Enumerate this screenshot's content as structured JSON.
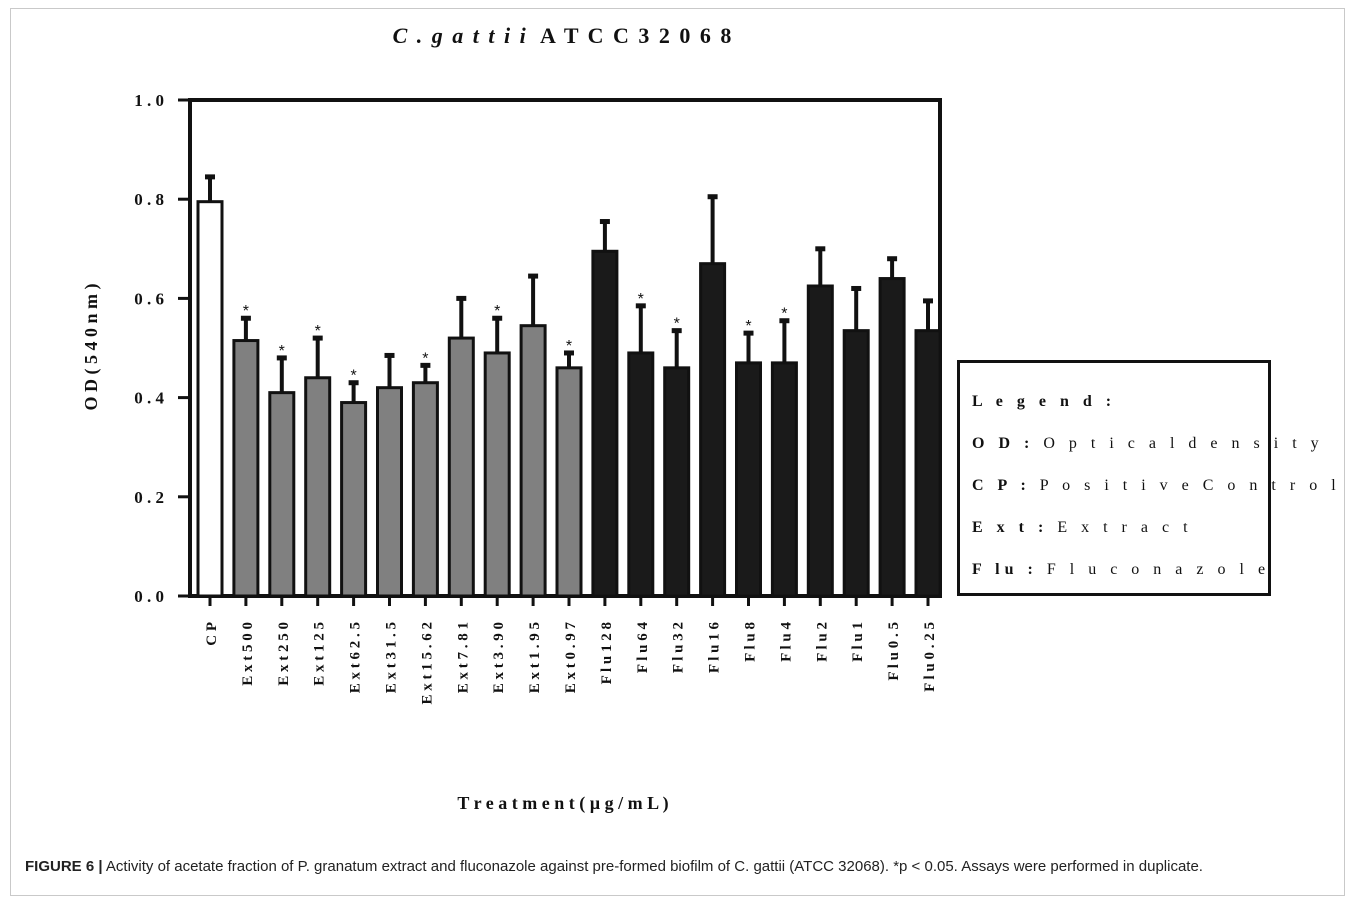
{
  "chart_data": {
    "type": "bar",
    "title_italic": "C . g a t t i i",
    "title_rest": "A T C C   3 2 0 6 8",
    "ylabel": "O D  ( 5 4 0  n m )",
    "xlabel": "T r e a t m  e n t  ( µ g / m  L )",
    "ylim": [
      0,
      1.0
    ],
    "yticks": [
      "0 . 0",
      "0 . 2",
      "0 . 4",
      "0 . 6",
      "0 . 8",
      "1 . 0"
    ],
    "ytick_values": [
      0,
      0.2,
      0.4,
      0.6,
      0.8,
      1.0
    ],
    "categories": [
      "C P",
      "E x t  5 0 0",
      "E x t   2 5 0",
      "E x t  1 2 5",
      "E x t  6 2 . 5",
      "E x t   3 1 . 5",
      "E x t  1 5 . 6 2",
      "E x t   7 . 8 1",
      "E x t  3 . 9 0",
      "E x t  1 . 9 5",
      "E x t  0 . 9 7",
      "F l u  1 2 8",
      "F l u   6 4",
      "F l u  3 2",
      "F l u  1 6",
      "F l u   8",
      "F l u   4",
      "F l u   2",
      "F l u   1",
      "F l u  0 . 5",
      "F l u  0 . 2 5"
    ],
    "groups": [
      "control",
      "extract",
      "extract",
      "extract",
      "extract",
      "extract",
      "extract",
      "extract",
      "extract",
      "extract",
      "extract",
      "fluconazole",
      "fluconazole",
      "fluconazole",
      "fluconazole",
      "fluconazole",
      "fluconazole",
      "fluconazole",
      "fluconazole",
      "fluconazole",
      "fluconazole"
    ],
    "values": [
      0.795,
      0.515,
      0.41,
      0.44,
      0.39,
      0.42,
      0.43,
      0.52,
      0.49,
      0.545,
      0.46,
      0.695,
      0.49,
      0.46,
      0.67,
      0.47,
      0.47,
      0.625,
      0.535,
      0.64,
      0.535
    ],
    "error_upper": [
      0.845,
      0.56,
      0.48,
      0.52,
      0.43,
      0.485,
      0.465,
      0.6,
      0.56,
      0.645,
      0.49,
      0.755,
      0.585,
      0.535,
      0.805,
      0.53,
      0.555,
      0.7,
      0.62,
      0.68,
      0.595
    ],
    "significant": [
      false,
      true,
      true,
      true,
      true,
      false,
      true,
      false,
      true,
      false,
      true,
      false,
      true,
      true,
      false,
      true,
      true,
      false,
      false,
      false,
      false
    ],
    "significance_mark": "*",
    "colors": {
      "control": "#ffffff",
      "extract": "#808080",
      "fluconazole": "#1a1a1a",
      "axis": "#111111"
    }
  },
  "legend": {
    "title": "L e g e n d :",
    "items": [
      {
        "key": "O D :",
        "text": "O p t i c a l  d e n s i t y"
      },
      {
        "key": "C P :",
        "text": "P o s i t i v e  C o n t r o l"
      },
      {
        "key": "E x t :",
        "text": "E x t r a c t"
      },
      {
        "key": "F lu :",
        "text": "F l u c o n a z o l e"
      }
    ]
  },
  "caption": {
    "label": "FIGURE 6 |",
    "text": "Activity of acetate fraction of P. granatum extract and fluconazole against pre-formed biofilm of C. gattii (ATCC 32068). *p < 0.05. Assays were performed in duplicate."
  }
}
